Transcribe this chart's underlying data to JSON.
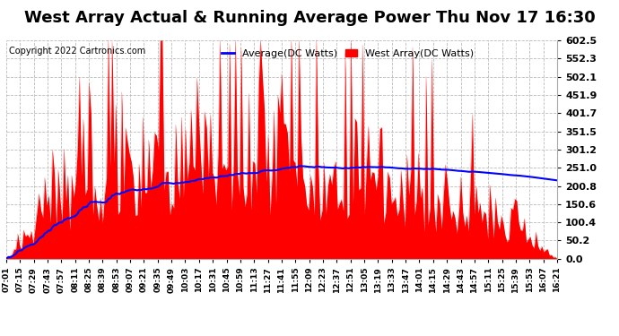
{
  "title": "West Array Actual & Running Average Power Thu Nov 17 16:30",
  "copyright": "Copyright 2022 Cartronics.com",
  "legend_avg": "Average(DC Watts)",
  "legend_west": "West Array(DC Watts)",
  "legend_avg_color": "blue",
  "legend_west_color": "red",
  "yticks": [
    0.0,
    50.2,
    100.4,
    150.6,
    200.8,
    251.0,
    301.2,
    351.5,
    401.7,
    451.9,
    502.1,
    552.3,
    602.5
  ],
  "ymax": 602.5,
  "ymin": 0.0,
  "background_color": "#ffffff",
  "plot_bg_color": "#ffffff",
  "grid_color": "#bbbbbb",
  "bar_color": "red",
  "line_color": "blue",
  "title_color": "black",
  "title_fontsize": 13,
  "xtick_labels": [
    "07:01",
    "07:15",
    "07:29",
    "07:43",
    "07:57",
    "08:11",
    "08:25",
    "08:39",
    "08:53",
    "09:07",
    "09:21",
    "09:35",
    "09:49",
    "10:03",
    "10:17",
    "10:31",
    "10:45",
    "10:59",
    "11:13",
    "11:27",
    "11:41",
    "11:55",
    "12:09",
    "12:23",
    "12:37",
    "12:51",
    "13:05",
    "13:19",
    "13:33",
    "13:47",
    "14:01",
    "14:15",
    "14:29",
    "14:43",
    "14:57",
    "15:11",
    "15:25",
    "15:39",
    "15:53",
    "16:07",
    "16:21"
  ]
}
